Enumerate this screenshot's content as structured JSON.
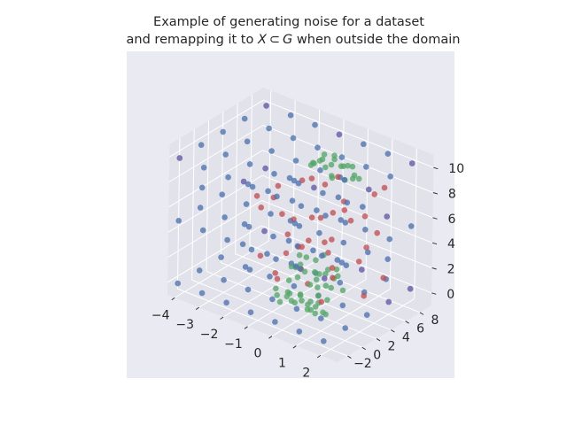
{
  "chart_data": {
    "type": "scatter",
    "projection": "3d",
    "title": "Example of generating noise for a dataset",
    "subtitle": "and remapping it to X ⊂ G when outside the domain",
    "title_parts": {
      "prefix": "and remapping it to ",
      "X": "X",
      "subset": "⊂",
      "G": "G",
      "suffix": " when outside the domain"
    },
    "xlabel": "",
    "ylabel": "",
    "zlabel": "",
    "xlim": [
      -4.3,
      2.7
    ],
    "ylim": [
      -3.4,
      9.6
    ],
    "zlim": [
      -1,
      11
    ],
    "x_ticks": [
      "−4",
      "−3",
      "−2",
      "−1",
      "0",
      "1",
      "2"
    ],
    "y_ticks": [
      "−2",
      "0",
      "2",
      "4",
      "6",
      "8"
    ],
    "z_ticks": [
      "0",
      "2",
      "4",
      "6",
      "8",
      "10"
    ],
    "x_tick_values": [
      -4,
      -3,
      -2,
      -1,
      0,
      1,
      2
    ],
    "y_tick_values": [
      -2,
      0,
      2,
      4,
      6,
      8
    ],
    "z_tick_values": [
      0,
      2,
      4,
      6,
      8,
      10
    ],
    "grid": true,
    "pane_color": "#e1e2ea",
    "background": "#eaeaf2",
    "series": [
      {
        "color": "#4c72b0",
        "points": [
          [
            -4,
            -3,
            10
          ],
          [
            -3,
            -3,
            10
          ],
          [
            -2,
            -3,
            10
          ],
          [
            -1,
            -3,
            10
          ],
          [
            0,
            -3,
            10
          ],
          [
            1,
            -3,
            10
          ],
          [
            2,
            -3,
            10
          ],
          [
            -4,
            0,
            10
          ],
          [
            -3,
            0,
            10
          ],
          [
            -2,
            0,
            10
          ],
          [
            -1,
            0,
            10
          ],
          [
            0,
            0,
            10
          ],
          [
            1,
            0,
            10
          ],
          [
            2,
            0,
            10
          ],
          [
            -4,
            3,
            10
          ],
          [
            -3,
            3,
            10
          ],
          [
            -2,
            3,
            10
          ],
          [
            -1,
            3,
            10
          ],
          [
            0,
            3,
            10
          ],
          [
            1,
            3,
            10
          ],
          [
            2,
            3,
            10
          ],
          [
            -4,
            6,
            10
          ],
          [
            -3,
            6,
            10
          ],
          [
            -2,
            6,
            10
          ],
          [
            -1,
            6,
            10
          ],
          [
            0,
            6,
            10
          ],
          [
            1,
            6,
            10
          ],
          [
            2,
            6,
            10
          ],
          [
            -4,
            9,
            10
          ],
          [
            -3,
            9,
            10
          ],
          [
            -2,
            9,
            10
          ],
          [
            -1,
            9,
            10
          ],
          [
            0,
            9,
            10
          ],
          [
            1,
            9,
            10
          ],
          [
            2,
            9,
            10
          ],
          [
            -4,
            -3,
            5
          ],
          [
            -3,
            -3,
            5
          ],
          [
            -2,
            -3,
            5
          ],
          [
            -1,
            -3,
            5
          ],
          [
            0,
            -3,
            5
          ],
          [
            1,
            -3,
            5
          ],
          [
            2,
            -3,
            5
          ],
          [
            -4,
            0,
            5
          ],
          [
            -3,
            0,
            5
          ],
          [
            -2,
            0,
            5
          ],
          [
            -1,
            0,
            5
          ],
          [
            0,
            0,
            5
          ],
          [
            1,
            0,
            5
          ],
          [
            2,
            0,
            5
          ],
          [
            -4,
            3,
            5
          ],
          [
            -3,
            3,
            5
          ],
          [
            -2,
            3,
            5
          ],
          [
            -1,
            3,
            5
          ],
          [
            0,
            3,
            5
          ],
          [
            1,
            3,
            5
          ],
          [
            2,
            3,
            5
          ],
          [
            -4,
            6,
            5
          ],
          [
            -3,
            6,
            5
          ],
          [
            -2,
            6,
            5
          ],
          [
            -1,
            6,
            5
          ],
          [
            0,
            6,
            5
          ],
          [
            1,
            6,
            5
          ],
          [
            2,
            6,
            5
          ],
          [
            -4,
            9,
            5
          ],
          [
            -3,
            9,
            5
          ],
          [
            -2,
            9,
            5
          ],
          [
            -1,
            9,
            5
          ],
          [
            0,
            9,
            5
          ],
          [
            1,
            9,
            5
          ],
          [
            2,
            9,
            5
          ],
          [
            -4,
            -3,
            0
          ],
          [
            -3,
            -3,
            0
          ],
          [
            -2,
            -3,
            0
          ],
          [
            -1,
            -3,
            0
          ],
          [
            0,
            -3,
            0
          ],
          [
            1,
            -3,
            0
          ],
          [
            2,
            -3,
            0
          ],
          [
            -4,
            0,
            0
          ],
          [
            -3,
            0,
            0
          ],
          [
            -2,
            0,
            0
          ],
          [
            -1,
            0,
            0
          ],
          [
            0,
            0,
            0
          ],
          [
            1,
            0,
            0
          ],
          [
            2,
            0,
            0
          ],
          [
            -4,
            3,
            0
          ],
          [
            -3,
            3,
            0
          ],
          [
            -2,
            3,
            0
          ],
          [
            -1,
            3,
            0
          ],
          [
            0,
            3,
            0
          ],
          [
            1,
            3,
            0
          ],
          [
            2,
            3,
            0
          ],
          [
            -4,
            6,
            0
          ],
          [
            -3,
            6,
            0
          ],
          [
            -2,
            6,
            0
          ],
          [
            -1,
            6,
            0
          ],
          [
            0,
            6,
            0
          ],
          [
            1,
            6,
            0
          ],
          [
            2,
            6,
            0
          ],
          [
            -4,
            9,
            0
          ],
          [
            -3,
            9,
            0
          ],
          [
            -2,
            9,
            0
          ],
          [
            -1,
            9,
            0
          ],
          [
            0,
            9,
            0
          ],
          [
            1,
            9,
            0
          ],
          [
            2,
            9,
            0
          ],
          [
            -3.5,
            -1.5,
            7.5
          ],
          [
            -2.5,
            1.5,
            7.5
          ],
          [
            -1.5,
            4.5,
            7.5
          ],
          [
            -0.5,
            7.5,
            7.5
          ],
          [
            0.5,
            -1.5,
            7.5
          ],
          [
            1.5,
            1.5,
            7.5
          ],
          [
            -3.5,
            4.5,
            2.5
          ],
          [
            -2.5,
            7.5,
            2.5
          ],
          [
            -1.5,
            -1.5,
            2.5
          ],
          [
            -0.5,
            1.5,
            2.5
          ],
          [
            0.5,
            4.5,
            2.5
          ],
          [
            1.5,
            7.5,
            2.5
          ]
        ]
      },
      {
        "color": "#c44e52",
        "points": [
          [
            -1.3,
            2.2,
            5.8
          ],
          [
            0.4,
            5.1,
            6.4
          ],
          [
            1.2,
            0.8,
            3.9
          ],
          [
            -0.6,
            6.8,
            2.7
          ],
          [
            0.9,
            3.3,
            8.1
          ],
          [
            -2.1,
            1.4,
            6.9
          ],
          [
            1.8,
            5.9,
            1.8
          ],
          [
            -0.2,
            -0.9,
            4.6
          ],
          [
            0.6,
            7.3,
            5.3
          ],
          [
            -1.7,
            4.4,
            3.1
          ],
          [
            1.4,
            2.6,
            7.2
          ],
          [
            -0.9,
            0.3,
            1.6
          ],
          [
            0.2,
            4.8,
            9.0
          ],
          [
            -2.6,
            3.7,
            4.8
          ],
          [
            1.0,
            6.2,
            3.5
          ],
          [
            -0.4,
            1.9,
            2.2
          ],
          [
            0.7,
            -1.8,
            6.1
          ],
          [
            -1.1,
            5.6,
            7.6
          ],
          [
            1.6,
            3.9,
            0.9
          ],
          [
            -0.7,
            2.9,
            8.7
          ],
          [
            0.3,
            0.5,
            5.5
          ],
          [
            -1.9,
            6.6,
            1.2
          ],
          [
            1.1,
            1.2,
            2.9
          ],
          [
            -0.1,
            4.1,
            3.8
          ],
          [
            0.8,
            7.9,
            7.0
          ],
          [
            -1.4,
            -0.4,
            3.3
          ],
          [
            1.9,
            4.6,
            5.9
          ],
          [
            -0.5,
            3.2,
            0.5
          ],
          [
            0.5,
            2.0,
            9.6
          ],
          [
            -2.3,
            5.0,
            6.3
          ],
          [
            1.3,
            -1.0,
            1.9
          ],
          [
            -0.8,
            7.6,
            4.4
          ],
          [
            0.1,
            1.6,
            6.8
          ],
          [
            -1.6,
            2.4,
            0.8
          ],
          [
            1.5,
            6.9,
            8.4
          ],
          [
            -0.3,
            5.3,
            2.4
          ],
          [
            0.9,
            0.1,
            7.9
          ],
          [
            -1.2,
            3.5,
            5.0
          ],
          [
            1.7,
            2.8,
            4.1
          ],
          [
            -0.6,
            -1.4,
            8.9
          ]
        ]
      },
      {
        "color": "#55a868",
        "points": [
          [
            -0.4,
            1.8,
            2.6
          ],
          [
            0.2,
            2.4,
            2.1
          ],
          [
            0.6,
            3.1,
            1.8
          ],
          [
            -0.1,
            2.9,
            2.8
          ],
          [
            0.4,
            1.5,
            1.5
          ],
          [
            -0.7,
            2.2,
            2.0
          ],
          [
            0.9,
            2.6,
            2.4
          ],
          [
            0.1,
            3.6,
            1.6
          ],
          [
            -0.3,
            1.1,
            1.9
          ],
          [
            0.7,
            1.9,
            3.0
          ],
          [
            -0.6,
            3.3,
            2.5
          ],
          [
            0.3,
            2.0,
            0.6
          ],
          [
            1.0,
            3.0,
            1.2
          ],
          [
            -0.2,
            2.5,
            0.9
          ],
          [
            0.5,
            3.8,
            2.2
          ],
          [
            -0.8,
            1.6,
            1.1
          ],
          [
            0.0,
            2.7,
            1.4
          ],
          [
            0.8,
            1.3,
            2.0
          ],
          [
            -0.5,
            2.0,
            3.2
          ],
          [
            0.4,
            3.4,
            0.8
          ],
          [
            -1.0,
            2.6,
            1.7
          ],
          [
            0.6,
            2.2,
            0.4
          ],
          [
            -0.1,
            1.4,
            2.4
          ],
          [
            0.2,
            3.0,
            3.4
          ],
          [
            -0.4,
            3.8,
            1.3
          ],
          [
            -0.2,
            0.4,
            0.2
          ],
          [
            0.3,
            0.9,
            0.5
          ],
          [
            0.7,
            0.2,
            0.1
          ],
          [
            -0.5,
            0.7,
            0.6
          ],
          [
            0.1,
            1.2,
            0.0
          ],
          [
            -0.9,
            0.3,
            0.3
          ],
          [
            0.5,
            -0.2,
            0.4
          ],
          [
            -0.1,
            -0.4,
            0.7
          ],
          [
            0.9,
            0.6,
            0.2
          ],
          [
            -0.7,
            1.0,
            0.1
          ],
          [
            0.2,
            0.0,
            0.8
          ],
          [
            -0.3,
            1.5,
            0.4
          ],
          [
            0.6,
            1.0,
            0.6
          ],
          [
            -0.6,
            -0.3,
            0.2
          ],
          [
            0.0,
            0.5,
            0.9
          ],
          [
            1.1,
            0.3,
            0.3
          ],
          [
            -1.1,
            0.8,
            0.5
          ],
          [
            0.4,
            0.6,
            0.0
          ],
          [
            -0.4,
            0.1,
            1.0
          ],
          [
            0.8,
            -0.1,
            0.8
          ],
          [
            -0.2,
            4.4,
            9.6
          ],
          [
            0.3,
            4.9,
            9.9
          ],
          [
            0.7,
            5.4,
            9.3
          ],
          [
            -0.5,
            5.0,
            9.8
          ],
          [
            0.1,
            4.2,
            10.1
          ],
          [
            -0.8,
            4.7,
            9.4
          ],
          [
            0.5,
            5.8,
            9.7
          ],
          [
            -0.1,
            5.3,
            10.3
          ],
          [
            0.9,
            4.5,
            9.5
          ],
          [
            -0.6,
            5.6,
            9.9
          ],
          [
            0.2,
            4.0,
            9.2
          ],
          [
            -0.3,
            6.0,
            9.6
          ],
          [
            0.6,
            4.8,
            10.2
          ],
          [
            -0.9,
            5.2,
            9.1
          ],
          [
            0.0,
            4.6,
            9.0
          ],
          [
            0.4,
            5.1,
            8.8
          ],
          [
            -0.4,
            4.3,
            10.0
          ],
          [
            0.8,
            5.7,
            9.0
          ],
          [
            -0.7,
            4.1,
            9.5
          ],
          [
            0.1,
            5.9,
            9.4
          ]
        ]
      },
      {
        "color": "#8172b3",
        "points": [
          [
            -4,
            9,
            10
          ],
          [
            2,
            9,
            10
          ],
          [
            -4,
            -3,
            10
          ],
          [
            2,
            -3,
            5
          ],
          [
            -4,
            9,
            0
          ],
          [
            2,
            9,
            0
          ],
          [
            -1,
            9,
            10
          ],
          [
            -4,
            6,
            5
          ],
          [
            2,
            6,
            0
          ],
          [
            -2,
            9,
            5
          ],
          [
            1,
            9,
            5
          ],
          [
            -4,
            9,
            5
          ],
          [
            0,
            9,
            0
          ],
          [
            2,
            3,
            10
          ]
        ]
      }
    ]
  }
}
